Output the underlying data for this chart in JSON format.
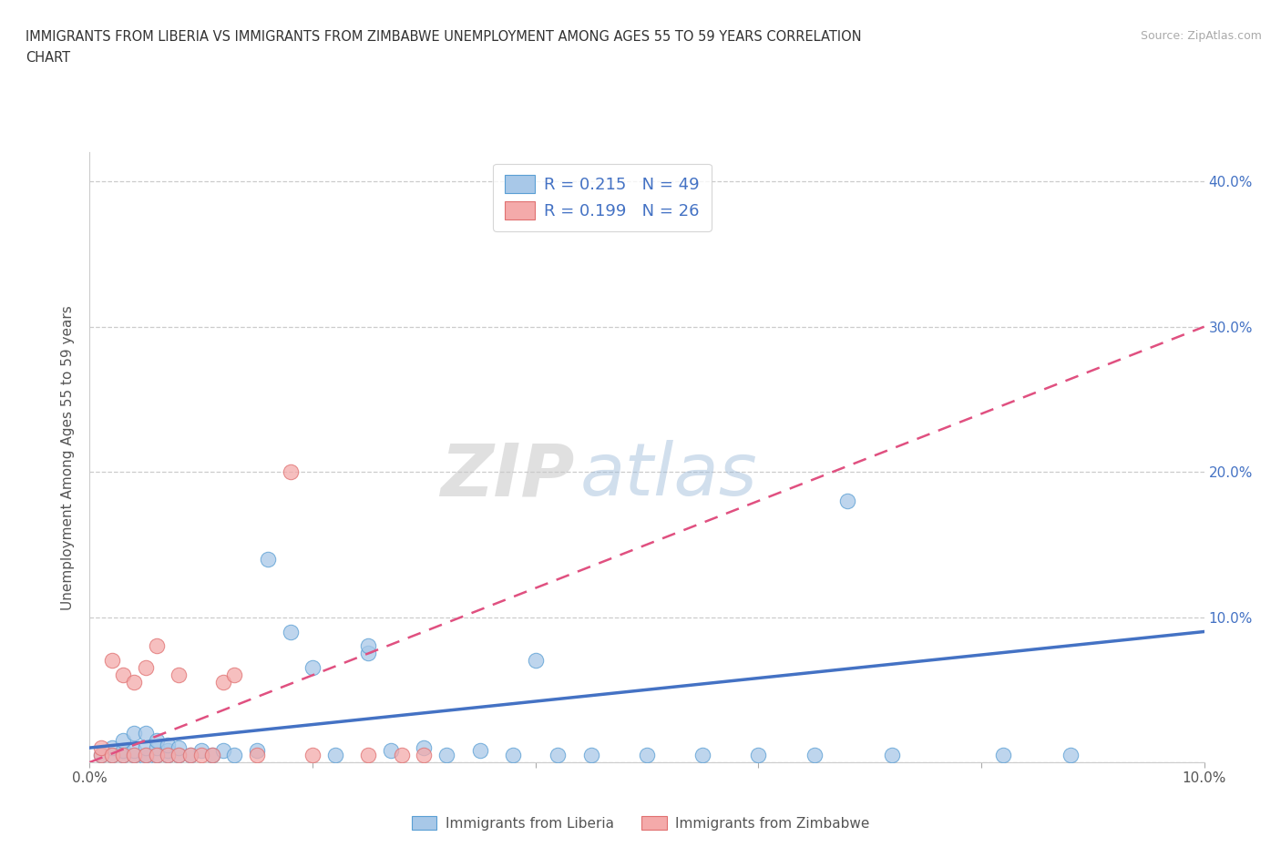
{
  "title_line1": "IMMIGRANTS FROM LIBERIA VS IMMIGRANTS FROM ZIMBABWE UNEMPLOYMENT AMONG AGES 55 TO 59 YEARS CORRELATION",
  "title_line2": "CHART",
  "source": "Source: ZipAtlas.com",
  "ylabel": "Unemployment Among Ages 55 to 59 years",
  "xlim": [
    0.0,
    0.1
  ],
  "ylim": [
    0.0,
    0.42
  ],
  "xticks": [
    0.0,
    0.02,
    0.04,
    0.06,
    0.08,
    0.1
  ],
  "yticks": [
    0.0,
    0.1,
    0.2,
    0.3,
    0.4
  ],
  "liberia_color": "#a8c8e8",
  "liberia_edge": "#5a9fd4",
  "zimbabwe_color": "#f4aaaa",
  "zimbabwe_edge": "#e07070",
  "liberia_trend_color": "#4472c4",
  "zimbabwe_trend_color": "#e05080",
  "liberia_R": 0.215,
  "liberia_N": 49,
  "zimbabwe_R": 0.199,
  "zimbabwe_N": 26,
  "legend_label_liberia": "Immigrants from Liberia",
  "legend_label_zimbabwe": "Immigrants from Zimbabwe",
  "watermark": "ZIPatlas",
  "right_tick_color": "#4472c4",
  "left_tick_color": "#666666",
  "liberia_x": [
    0.001,
    0.002,
    0.002,
    0.003,
    0.003,
    0.003,
    0.004,
    0.004,
    0.004,
    0.005,
    0.005,
    0.005,
    0.005,
    0.006,
    0.006,
    0.006,
    0.007,
    0.007,
    0.007,
    0.008,
    0.008,
    0.009,
    0.01,
    0.011,
    0.012,
    0.013,
    0.015,
    0.016,
    0.018,
    0.02,
    0.022,
    0.025,
    0.025,
    0.027,
    0.03,
    0.032,
    0.035,
    0.038,
    0.04,
    0.042,
    0.045,
    0.05,
    0.055,
    0.06,
    0.065,
    0.068,
    0.072,
    0.082,
    0.088
  ],
  "liberia_y": [
    0.005,
    0.005,
    0.01,
    0.005,
    0.008,
    0.015,
    0.005,
    0.008,
    0.02,
    0.003,
    0.005,
    0.01,
    0.02,
    0.005,
    0.01,
    0.015,
    0.005,
    0.008,
    0.012,
    0.005,
    0.01,
    0.005,
    0.008,
    0.005,
    0.008,
    0.005,
    0.008,
    0.14,
    0.09,
    0.065,
    0.005,
    0.075,
    0.08,
    0.008,
    0.01,
    0.005,
    0.008,
    0.005,
    0.07,
    0.005,
    0.005,
    0.005,
    0.005,
    0.005,
    0.005,
    0.18,
    0.005,
    0.005,
    0.005
  ],
  "zimbabwe_x": [
    0.001,
    0.001,
    0.002,
    0.002,
    0.003,
    0.003,
    0.004,
    0.004,
    0.005,
    0.005,
    0.006,
    0.006,
    0.007,
    0.008,
    0.008,
    0.009,
    0.01,
    0.011,
    0.012,
    0.013,
    0.015,
    0.018,
    0.02,
    0.025,
    0.028,
    0.03
  ],
  "zimbabwe_y": [
    0.005,
    0.01,
    0.005,
    0.07,
    0.005,
    0.06,
    0.005,
    0.055,
    0.005,
    0.065,
    0.005,
    0.08,
    0.005,
    0.005,
    0.06,
    0.005,
    0.005,
    0.005,
    0.055,
    0.06,
    0.005,
    0.2,
    0.005,
    0.005,
    0.005,
    0.005
  ],
  "liberia_trend_x": [
    0.0,
    0.1
  ],
  "liberia_trend_y": [
    0.01,
    0.09
  ],
  "zimbabwe_trend_x": [
    0.0,
    0.1
  ],
  "zimbabwe_trend_y": [
    0.0,
    0.3
  ]
}
